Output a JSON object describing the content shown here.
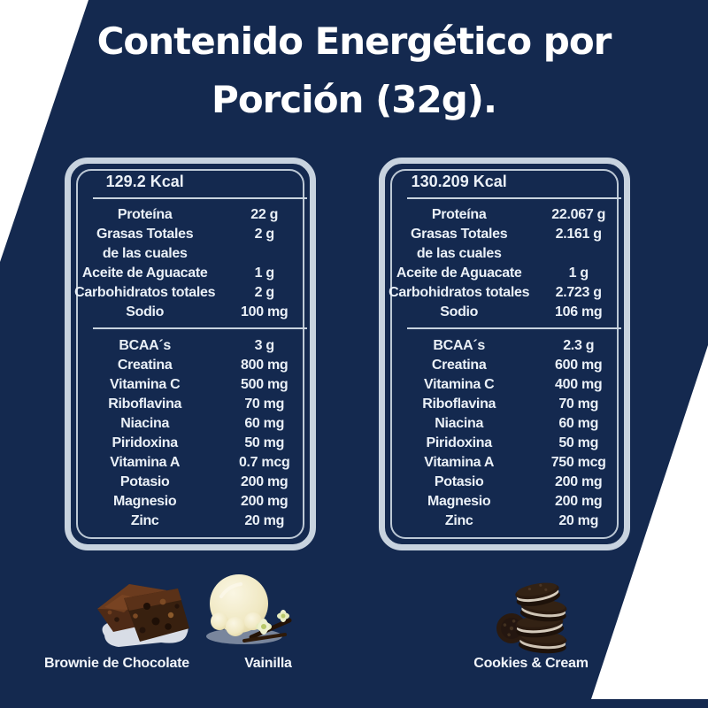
{
  "title": {
    "line1": "Contenido Energético por",
    "line2": "Porción (32g)."
  },
  "colors": {
    "background": "#14294F",
    "panel_border": "#C8D3DF",
    "inner_border": "#BCC8D5",
    "text": "#EAF0F7",
    "title_text": "#FFFFFF",
    "corner_wedge": "#FFFFFF"
  },
  "panels": [
    {
      "kcal": "129.2 Kcal",
      "macros": [
        {
          "label": "Proteína",
          "value": "22 g"
        },
        {
          "label": "Grasas Totales",
          "value": "2 g"
        },
        {
          "label": "de las cuales",
          "value": ""
        },
        {
          "label": "Aceite de Aguacate",
          "value": "1 g"
        },
        {
          "label": "Carbohidratos totales",
          "value": "2 g"
        },
        {
          "label": "Sodio",
          "value": "100 mg"
        }
      ],
      "micros": [
        {
          "label": "BCAA´s",
          "value": "3 g"
        },
        {
          "label": "Creatina",
          "value": "800 mg"
        },
        {
          "label": "Vitamina C",
          "value": "500 mg"
        },
        {
          "label": "Riboflavina",
          "value": "70 mg"
        },
        {
          "label": "Niacina",
          "value": "60 mg"
        },
        {
          "label": "Piridoxina",
          "value": "50 mg"
        },
        {
          "label": "Vitamina A",
          "value": "0.7 mcg"
        },
        {
          "label": "Potasio",
          "value": "200 mg"
        },
        {
          "label": "Magnesio",
          "value": "200 mg"
        },
        {
          "label": "Zinc",
          "value": "20 mg"
        }
      ]
    },
    {
      "kcal": "130.209 Kcal",
      "macros": [
        {
          "label": "Proteína",
          "value": "22.067 g"
        },
        {
          "label": "Grasas Totales",
          "value": "2.161 g"
        },
        {
          "label": "de las cuales",
          "value": ""
        },
        {
          "label": "Aceite de Aguacate",
          "value": "1 g"
        },
        {
          "label": "Carbohidratos totales",
          "value": "2.723 g"
        },
        {
          "label": "Sodio",
          "value": "106 mg"
        }
      ],
      "micros": [
        {
          "label": "BCAA´s",
          "value": "2.3 g"
        },
        {
          "label": "Creatina",
          "value": "600 mg"
        },
        {
          "label": "Vitamina C",
          "value": "400 mg"
        },
        {
          "label": "Riboflavina",
          "value": "70 mg"
        },
        {
          "label": "Niacina",
          "value": "60 mg"
        },
        {
          "label": "Piridoxina",
          "value": "50 mg"
        },
        {
          "label": "Vitamina A",
          "value": "750 mcg"
        },
        {
          "label": "Potasio",
          "value": "200 mg"
        },
        {
          "label": "Magnesio",
          "value": "200 mg"
        },
        {
          "label": "Zinc",
          "value": "20 mg"
        }
      ]
    }
  ],
  "flavors": [
    {
      "label": "Brownie de Chocolate",
      "icon": "brownie-photo"
    },
    {
      "label": "Vainilla",
      "icon": "vanilla-ice-cream-photo"
    },
    {
      "label": "Cookies & Cream",
      "icon": "cookies-photo"
    }
  ]
}
